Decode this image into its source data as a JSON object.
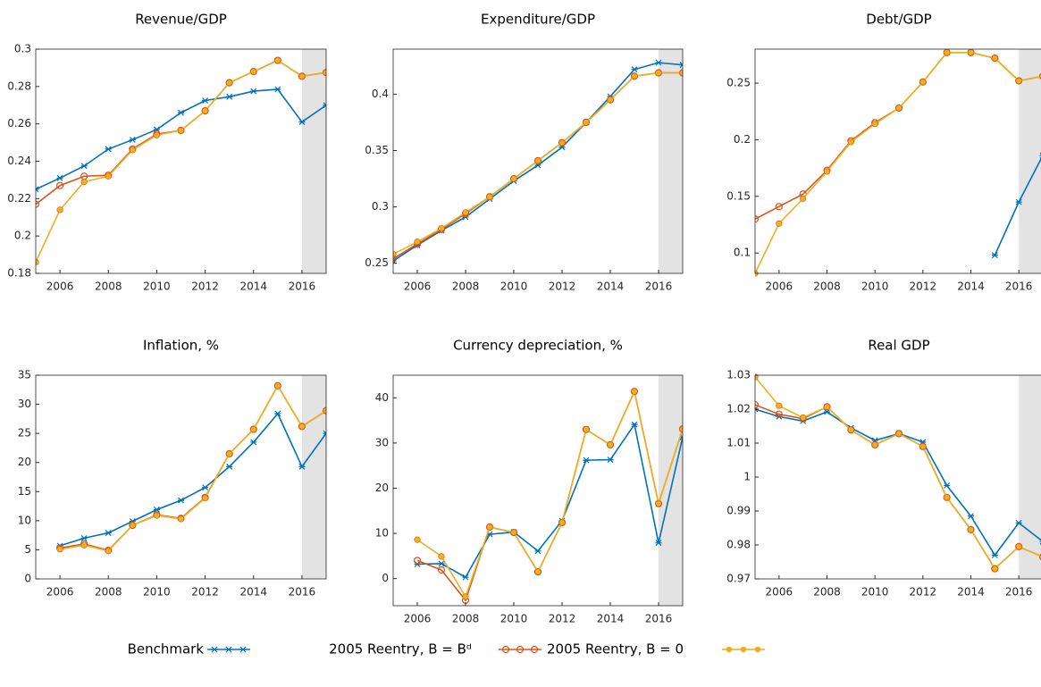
{
  "chart_data": [
    {
      "type": "line",
      "title": "Revenue/GDP",
      "shaded_xrange": [
        2016,
        2017
      ],
      "x": [
        2005,
        2006,
        2007,
        2008,
        2009,
        2010,
        2011,
        2012,
        2013,
        2014,
        2015,
        2016,
        2017
      ],
      "xlim": [
        2005,
        2017
      ],
      "xticks": [
        2006,
        2008,
        2010,
        2012,
        2014,
        2016
      ],
      "ylim": [
        0.18,
        0.3
      ],
      "yticks": [
        0.18,
        0.2,
        0.22,
        0.24,
        0.26,
        0.28,
        0.3
      ],
      "series": [
        {
          "name": "Benchmark",
          "color": "#0072BD",
          "marker": "asterisk",
          "values": [
            0.225,
            0.231,
            0.2375,
            0.2465,
            0.2515,
            0.257,
            0.266,
            0.2725,
            0.2745,
            0.2775,
            0.2785,
            0.261,
            0.27
          ]
        },
        {
          "name": "2005 Reentry, B = Bᵈ",
          "color": "#D95319",
          "marker": "open-circle",
          "values": [
            0.217,
            0.227,
            0.232,
            0.2325,
            0.2465,
            0.2545,
            0.2565,
            0.267,
            0.282,
            0.288,
            0.294,
            0.2855,
            0.2875
          ]
        },
        {
          "name": "2005 Reentry, B = 0",
          "color": "#EDB120",
          "marker": "filled-circle",
          "values": [
            0.186,
            0.214,
            0.229,
            0.232,
            0.246,
            0.254,
            0.2565,
            0.267,
            0.282,
            0.288,
            0.294,
            0.2855,
            0.2875
          ]
        }
      ]
    },
    {
      "type": "line",
      "title": "Expenditure/GDP",
      "shaded_xrange": [
        2016,
        2017
      ],
      "x": [
        2005,
        2006,
        2007,
        2008,
        2009,
        2010,
        2011,
        2012,
        2013,
        2014,
        2015,
        2016,
        2017
      ],
      "xlim": [
        2005,
        2017
      ],
      "xticks": [
        2006,
        2008,
        2010,
        2012,
        2014,
        2016
      ],
      "ylim": [
        0.241,
        0.44
      ],
      "yticks": [
        0.25,
        0.3,
        0.35,
        0.4
      ],
      "series": [
        {
          "name": "Benchmark",
          "color": "#0072BD",
          "marker": "asterisk",
          "values": [
            0.252,
            0.266,
            0.279,
            0.291,
            0.307,
            0.323,
            0.337,
            0.353,
            0.375,
            0.398,
            0.422,
            0.428,
            0.426
          ]
        },
        {
          "name": "2005 Reentry, B = Bᵈ",
          "color": "#D95319",
          "marker": "open-circle",
          "values": [
            0.254,
            0.267,
            0.28,
            0.294,
            0.309,
            0.325,
            0.341,
            0.357,
            0.375,
            0.395,
            0.416,
            0.419,
            0.419
          ]
        },
        {
          "name": "2005 Reentry, B = 0",
          "color": "#EDB120",
          "marker": "filled-circle",
          "values": [
            0.258,
            0.269,
            0.281,
            0.295,
            0.309,
            0.325,
            0.341,
            0.357,
            0.375,
            0.395,
            0.416,
            0.419,
            0.419
          ]
        }
      ]
    },
    {
      "type": "line",
      "title": "Debt/GDP",
      "shaded_xrange": [
        2016,
        2017
      ],
      "x": [
        2005,
        2006,
        2007,
        2008,
        2009,
        2010,
        2011,
        2012,
        2013,
        2014,
        2015,
        2016,
        2017
      ],
      "xlim": [
        2005,
        2017
      ],
      "xticks": [
        2006,
        2008,
        2010,
        2012,
        2014,
        2016
      ],
      "ylim": [
        0.082,
        0.28
      ],
      "yticks": [
        0.1,
        0.15,
        0.2,
        0.25
      ],
      "series": [
        {
          "name": "Benchmark",
          "color": "#0072BD",
          "marker": "asterisk",
          "values": [
            null,
            null,
            null,
            null,
            null,
            null,
            null,
            null,
            null,
            null,
            0.098,
            0.145,
            0.186
          ]
        },
        {
          "name": "2005 Reentry, B = Bᵈ",
          "color": "#D95319",
          "marker": "open-circle",
          "values": [
            0.13,
            0.141,
            0.152,
            0.173,
            0.199,
            0.215,
            0.228,
            0.251,
            0.277,
            0.277,
            0.272,
            0.252,
            0.256
          ]
        },
        {
          "name": "2005 Reentry, B = 0",
          "color": "#EDB120",
          "marker": "filled-circle",
          "values": [
            0.082,
            0.126,
            0.148,
            0.172,
            0.198,
            0.214,
            0.228,
            0.251,
            0.277,
            0.277,
            0.272,
            0.252,
            0.256
          ]
        }
      ]
    },
    {
      "type": "line",
      "title": "Inflation, %",
      "shaded_xrange": [
        2016,
        2017
      ],
      "x": [
        2006,
        2007,
        2008,
        2009,
        2010,
        2011,
        2012,
        2013,
        2014,
        2015,
        2016,
        2017
      ],
      "xlim": [
        2005,
        2017
      ],
      "xticks": [
        2006,
        2008,
        2010,
        2012,
        2014,
        2016
      ],
      "ylim": [
        0,
        35
      ],
      "yticks": [
        0,
        5,
        10,
        15,
        20,
        25,
        30,
        35
      ],
      "series": [
        {
          "name": "Benchmark",
          "color": "#0072BD",
          "marker": "asterisk",
          "values": [
            5.7,
            7.0,
            7.9,
            9.9,
            11.9,
            13.5,
            15.7,
            19.3,
            23.5,
            28.4,
            19.3,
            25.0
          ]
        },
        {
          "name": "2005 Reentry, B = Bᵈ",
          "color": "#D95319",
          "marker": "open-circle",
          "values": [
            5.3,
            6.0,
            4.9,
            9.2,
            11.0,
            10.4,
            14.0,
            21.5,
            25.7,
            33.2,
            26.2,
            28.9
          ]
        },
        {
          "name": "2005 Reentry, B = 0",
          "color": "#EDB120",
          "marker": "filled-circle",
          "values": [
            5.1,
            5.8,
            4.8,
            9.2,
            10.9,
            10.3,
            13.9,
            21.5,
            25.7,
            33.2,
            26.2,
            28.9
          ]
        }
      ]
    },
    {
      "type": "line",
      "title": "Currency depreciation, %",
      "shaded_xrange": [
        2016,
        2017
      ],
      "x": [
        2006,
        2007,
        2008,
        2009,
        2010,
        2011,
        2012,
        2013,
        2014,
        2015,
        2016,
        2017
      ],
      "xlim": [
        2005,
        2017
      ],
      "xticks": [
        2006,
        2008,
        2010,
        2012,
        2014,
        2016
      ],
      "ylim": [
        -6,
        45
      ],
      "yticks": [
        0,
        10,
        20,
        30,
        40
      ],
      "series": [
        {
          "name": "Benchmark",
          "color": "#0072BD",
          "marker": "asterisk",
          "values": [
            3.2,
            3.3,
            0.3,
            9.8,
            10.3,
            6.1,
            12.8,
            26.2,
            26.3,
            34.1,
            7.9,
            31.3
          ]
        },
        {
          "name": "2005 Reentry, B = Bᵈ",
          "color": "#D95319",
          "marker": "open-circle",
          "values": [
            4.0,
            1.9,
            -4.8,
            11.4,
            10.2,
            1.5,
            12.4,
            33.0,
            29.6,
            41.4,
            16.6,
            33.1
          ]
        },
        {
          "name": "2005 Reentry, B = 0",
          "color": "#EDB120",
          "marker": "filled-circle",
          "values": [
            8.6,
            4.9,
            -4.0,
            11.4,
            10.2,
            1.5,
            12.4,
            33.0,
            29.6,
            41.4,
            16.6,
            33.1
          ]
        }
      ]
    },
    {
      "type": "line",
      "title": "Real GDP",
      "shaded_xrange": [
        2016,
        2017
      ],
      "x": [
        2005,
        2006,
        2007,
        2008,
        2009,
        2010,
        2011,
        2012,
        2013,
        2014,
        2015,
        2016,
        2017
      ],
      "xlim": [
        2005,
        2017
      ],
      "xticks": [
        2006,
        2008,
        2010,
        2012,
        2014,
        2016
      ],
      "ylim": [
        0.97,
        1.03
      ],
      "yticks": [
        0.97,
        0.98,
        0.99,
        1,
        1.01,
        1.02,
        1.03
      ],
      "series": [
        {
          "name": "Benchmark",
          "color": "#0072BD",
          "marker": "asterisk",
          "values": [
            1.02,
            1.0178,
            1.0165,
            1.0192,
            1.0145,
            1.0108,
            1.0128,
            1.0103,
            0.9975,
            0.9885,
            0.977,
            0.9865,
            0.981
          ]
        },
        {
          "name": "2005 Reentry, B = Bᵈ",
          "color": "#D95319",
          "marker": "open-circle",
          "values": [
            1.0213,
            1.0185,
            1.0172,
            1.0207,
            1.0139,
            1.0095,
            1.0128,
            1.009,
            0.994,
            0.9845,
            0.973,
            0.9795,
            0.9765
          ]
        },
        {
          "name": "2005 Reentry, B = 0",
          "color": "#EDB120",
          "marker": "filled-circle",
          "values": [
            1.0295,
            1.021,
            1.0175,
            1.0207,
            1.0139,
            1.0095,
            1.0128,
            1.009,
            0.994,
            0.9845,
            0.973,
            0.9795,
            0.9765
          ]
        }
      ]
    }
  ]
}
